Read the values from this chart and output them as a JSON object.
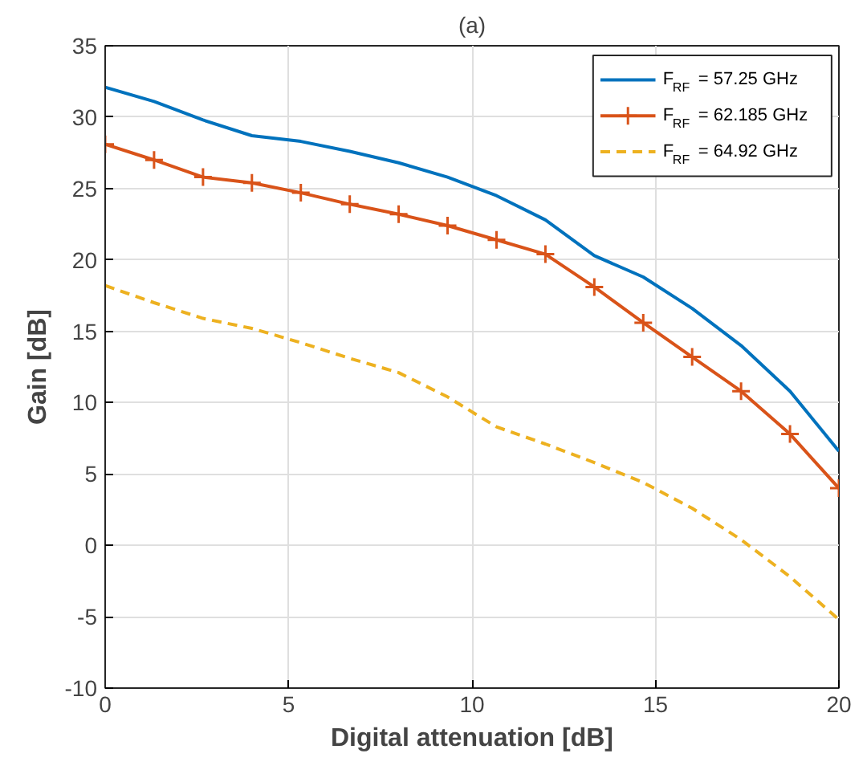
{
  "chart_data": {
    "type": "line",
    "title": "(a)",
    "xlabel": "Digital attenuation [dB]",
    "ylabel": "Gain [dB]",
    "x": [
      0,
      1.333,
      2.667,
      4,
      5.333,
      6.667,
      8,
      9.333,
      10.667,
      12,
      13.333,
      14.667,
      16,
      17.333,
      18.667,
      20
    ],
    "series": [
      {
        "name": "F$_{RF}$ = 57.25 GHz",
        "color": "#0072bd",
        "marker": "none",
        "line_style": "solid",
        "values": [
          32.1,
          31.1,
          29.8,
          28.7,
          28.3,
          27.6,
          26.8,
          25.8,
          24.5,
          22.8,
          20.3,
          18.8,
          16.6,
          14.0,
          10.8,
          6.6
        ]
      },
      {
        "name": "F$_{RF}$ = 62.185 GHz",
        "color": "#d95319",
        "marker": "cross",
        "line_style": "solid",
        "values": [
          28.1,
          27.0,
          25.8,
          25.4,
          24.7,
          23.9,
          23.2,
          22.4,
          21.4,
          20.4,
          18.1,
          15.6,
          13.2,
          10.8,
          7.8,
          4.0
        ]
      },
      {
        "name": "F$_{RF}$ = 64.92 GHz",
        "color": "#edb120",
        "marker": "none",
        "line_style": "dashed",
        "values": [
          18.2,
          17.0,
          15.9,
          15.2,
          14.2,
          13.1,
          12.1,
          10.4,
          8.3,
          7.1,
          5.8,
          4.4,
          2.6,
          0.4,
          -2.2,
          -5.2
        ]
      }
    ],
    "xlim": [
      0,
      20
    ],
    "ylim": [
      -10,
      35
    ],
    "xticks": [
      0,
      5,
      10,
      15,
      20
    ],
    "yticks": [
      -10,
      -5,
      0,
      5,
      10,
      15,
      20,
      25,
      30,
      35
    ],
    "grid": true,
    "legend": "top right"
  }
}
